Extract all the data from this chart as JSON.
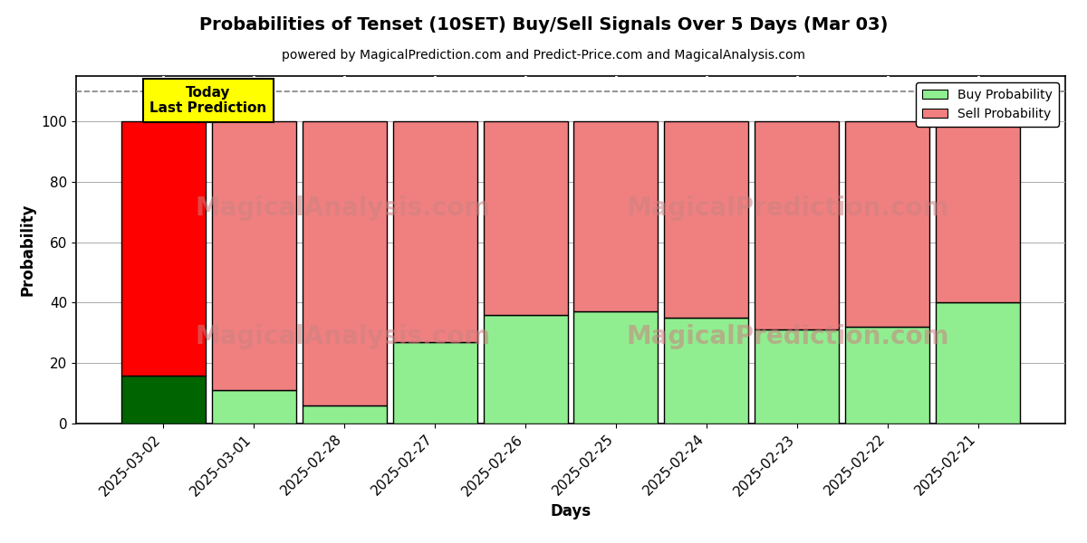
{
  "title": "Probabilities of Tenset (10SET) Buy/Sell Signals Over 5 Days (Mar 03)",
  "subtitle": "powered by MagicalPrediction.com and Predict-Price.com and MagicalAnalysis.com",
  "xlabel": "Days",
  "ylabel": "Probability",
  "categories": [
    "2025-03-02",
    "2025-03-01",
    "2025-02-28",
    "2025-02-27",
    "2025-02-26",
    "2025-02-25",
    "2025-02-24",
    "2025-02-23",
    "2025-02-22",
    "2025-02-21"
  ],
  "buy_values": [
    16,
    11,
    6,
    27,
    36,
    37,
    35,
    31,
    32,
    40
  ],
  "sell_values": [
    84,
    89,
    94,
    73,
    64,
    63,
    65,
    69,
    68,
    60
  ],
  "buy_color_today": "#006400",
  "sell_color_today": "#ff0000",
  "buy_color_normal": "#90EE90",
  "sell_color_normal": "#f08080",
  "today_box_color": "#ffff00",
  "today_label": "Today\nLast Prediction",
  "dashed_line_y": 110,
  "ylim": [
    0,
    115
  ],
  "yticks": [
    0,
    20,
    40,
    60,
    80,
    100
  ],
  "watermark1": "MagicalAnalysis.com",
  "watermark2": "MagicalPrediction.com",
  "watermark_color": "#cd8080",
  "legend_buy": "Buy Probability",
  "legend_sell": "Sell Probability",
  "background_color": "#ffffff",
  "grid_color": "#aaaaaa",
  "bar_edgecolor": "#000000",
  "title_fontsize": 14,
  "subtitle_fontsize": 10,
  "axis_label_fontsize": 12,
  "tick_fontsize": 11,
  "bar_width": 0.93
}
